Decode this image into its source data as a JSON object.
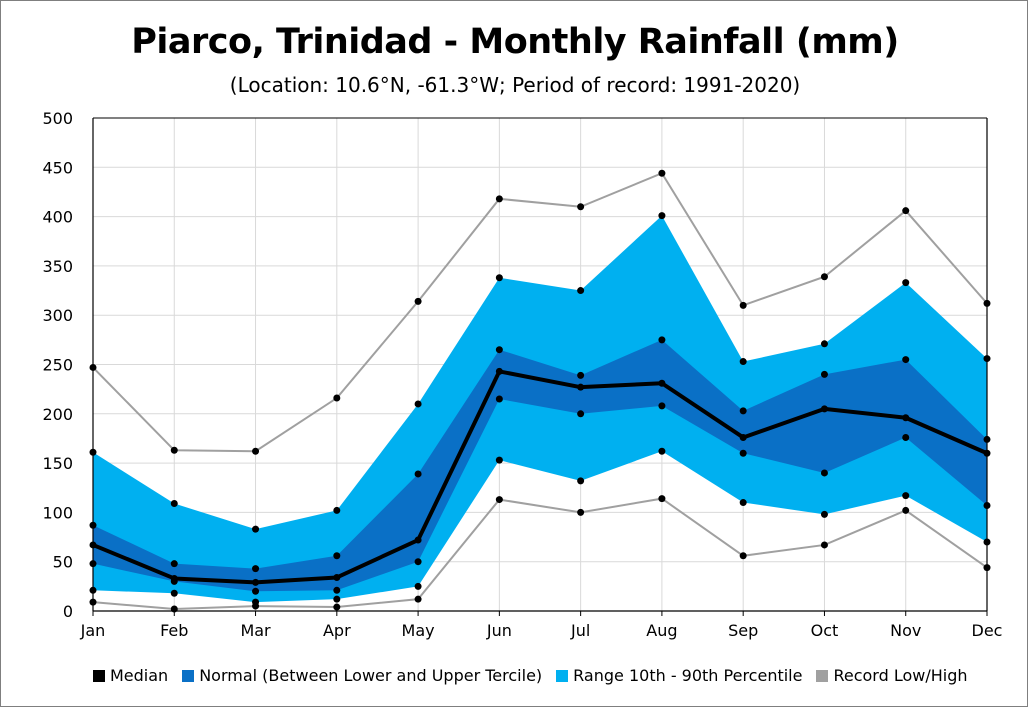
{
  "chart_data": {
    "type": "area",
    "title": "Piarco, Trinidad - Monthly Rainfall (mm)",
    "subtitle": "(Location: 10.6°N, -61.3°W; Period of record: 1991-2020)",
    "xlabel": "",
    "ylabel": "",
    "categories": [
      "Jan",
      "Feb",
      "Mar",
      "Apr",
      "May",
      "Jun",
      "Jul",
      "Aug",
      "Sep",
      "Oct",
      "Nov",
      "Dec"
    ],
    "ylim": [
      0,
      500
    ],
    "yticks": [
      "0",
      "50",
      "100",
      "150",
      "200",
      "250",
      "300",
      "350",
      "400",
      "450",
      "500"
    ],
    "grid": true,
    "legend_position": "bottom",
    "series": [
      {
        "name": "Median",
        "role": "median",
        "color": "#000000",
        "values": [
          67,
          33,
          29,
          34,
          72,
          243,
          227,
          231,
          176,
          205,
          196,
          160
        ]
      },
      {
        "name": "Normal (Between Lower and Upper Tercile)",
        "role": "tercile",
        "color": "#0a70c6",
        "lower": [
          48,
          30,
          20,
          21,
          50,
          215,
          200,
          208,
          160,
          140,
          176,
          107
        ],
        "upper": [
          87,
          48,
          43,
          56,
          139,
          265,
          239,
          275,
          203,
          240,
          255,
          174
        ]
      },
      {
        "name": "Range 10th - 90th Percentile",
        "role": "percentile",
        "color": "#00b0f0",
        "lower": [
          21,
          18,
          9,
          12,
          25,
          153,
          132,
          162,
          110,
          98,
          117,
          70
        ],
        "upper": [
          161,
          109,
          83,
          102,
          210,
          338,
          325,
          401,
          253,
          271,
          333,
          256
        ]
      },
      {
        "name": "Record Low/High",
        "role": "record",
        "color": "#a0a0a0",
        "lower": [
          9,
          2,
          5,
          4,
          12,
          113,
          100,
          114,
          56,
          67,
          102,
          44
        ],
        "upper": [
          247,
          163,
          162,
          216,
          314,
          418,
          410,
          444,
          310,
          339,
          406,
          312
        ]
      }
    ]
  }
}
